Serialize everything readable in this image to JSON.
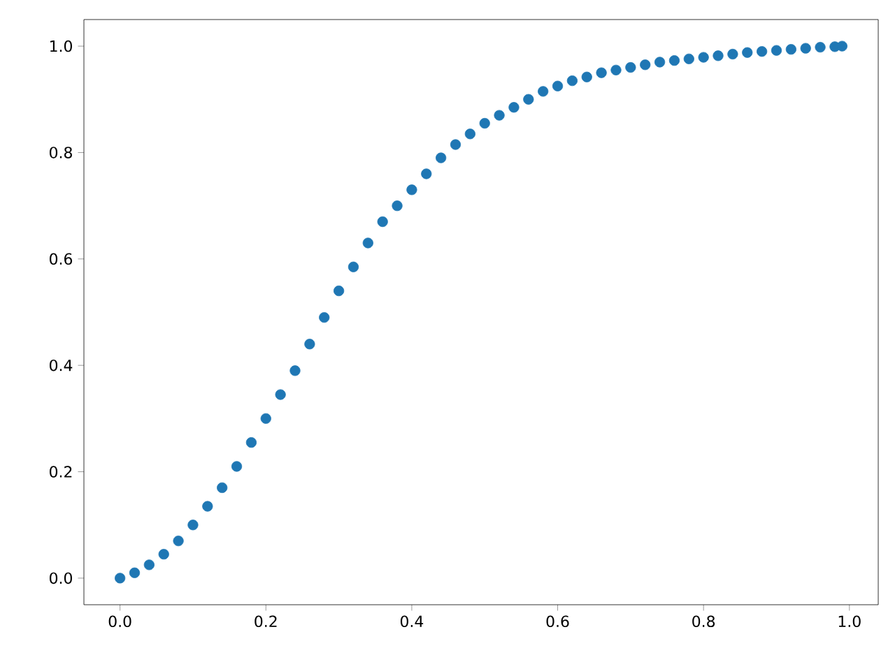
{
  "chart_data": {
    "type": "scatter",
    "marker": "circle",
    "grid": false,
    "x": [
      0.0,
      0.02,
      0.04,
      0.06,
      0.08,
      0.1,
      0.12,
      0.14,
      0.16,
      0.18,
      0.2,
      0.22,
      0.24,
      0.26,
      0.28,
      0.3,
      0.32,
      0.34,
      0.36,
      0.38,
      0.4,
      0.42,
      0.44,
      0.46,
      0.48,
      0.5,
      0.52,
      0.54,
      0.56,
      0.58,
      0.6,
      0.62,
      0.64,
      0.66,
      0.68,
      0.7,
      0.72,
      0.74,
      0.76,
      0.78,
      0.8,
      0.82,
      0.84,
      0.86,
      0.88,
      0.9,
      0.92,
      0.94,
      0.96,
      0.98,
      0.99
    ],
    "series": [
      {
        "color": "#1f77b4",
        "values": [
          0.0,
          0.01,
          0.025,
          0.045,
          0.07,
          0.1,
          0.135,
          0.17,
          0.21,
          0.255,
          0.3,
          0.345,
          0.39,
          0.44,
          0.49,
          0.54,
          0.585,
          0.63,
          0.67,
          0.7,
          0.73,
          0.76,
          0.79,
          0.815,
          0.835,
          0.855,
          0.87,
          0.885,
          0.9,
          0.915,
          0.925,
          0.935,
          0.942,
          0.95,
          0.955,
          0.96,
          0.965,
          0.97,
          0.973,
          0.976,
          0.979,
          0.982,
          0.985,
          0.988,
          0.99,
          0.992,
          0.994,
          0.996,
          0.998,
          0.999,
          1.0
        ]
      }
    ],
    "xlim": [
      -0.0495,
      1.0395
    ],
    "ylim": [
      -0.05,
      1.05
    ],
    "xticks": [
      {
        "value": 0,
        "label": "0.0"
      },
      {
        "value": 0.2,
        "label": "0.2"
      },
      {
        "value": 0.4,
        "label": "0.4"
      },
      {
        "value": 0.6,
        "label": "0.6"
      },
      {
        "value": 0.8,
        "label": "0.8"
      },
      {
        "value": 1,
        "label": "1.0"
      }
    ],
    "yticks": [
      {
        "value": 0,
        "label": "0.0"
      },
      {
        "value": 0.2,
        "label": "0.2"
      },
      {
        "value": 0.4,
        "label": "0.4"
      },
      {
        "value": 0.6,
        "label": "0.6"
      },
      {
        "value": 0.8,
        "label": "0.8"
      },
      {
        "value": 1,
        "label": "1.0"
      }
    ]
  }
}
